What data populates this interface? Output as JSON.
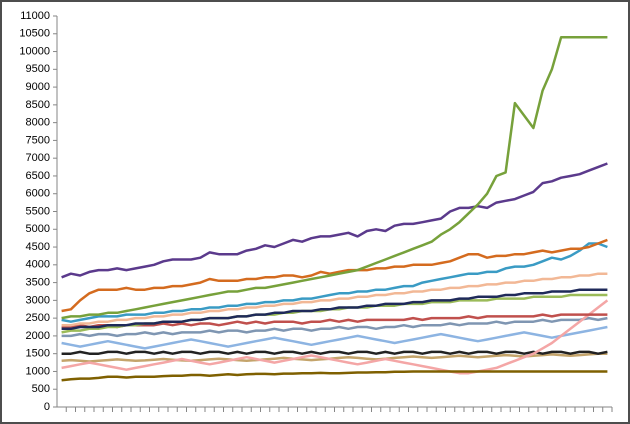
{
  "chart_data": {
    "type": "line",
    "categories": [
      null,
      null,
      null,
      null,
      null,
      null,
      null,
      null,
      null,
      null,
      null,
      null,
      null,
      null,
      null,
      null,
      null,
      null,
      null,
      null,
      null,
      null,
      null,
      null,
      null,
      null,
      null,
      null,
      null,
      null,
      null,
      null,
      null,
      null,
      null,
      null,
      null,
      null,
      null,
      null,
      null,
      null,
      null,
      null,
      null,
      null,
      null,
      null,
      null,
      null,
      null,
      null,
      null,
      null,
      null,
      null,
      null,
      null,
      null,
      null
    ],
    "ylim": [
      0,
      11000
    ],
    "yticks": [
      0,
      500,
      1000,
      1500,
      2000,
      2500,
      3000,
      3500,
      4000,
      4500,
      5000,
      5500,
      6000,
      6500,
      7000,
      7500,
      8000,
      8500,
      9000,
      9500,
      10000,
      10500,
      11000
    ],
    "grid": false,
    "series": [
      {
        "color": "#c4a46b",
        "values": [
          1300,
          1320,
          1300,
          1280,
          1300,
          1320,
          1340,
          1320,
          1300,
          1310,
          1330,
          1350,
          1330,
          1310,
          1300,
          1320,
          1340,
          1360,
          1340,
          1320,
          1300,
          1320,
          1340,
          1360,
          1380,
          1360,
          1340,
          1320,
          1340,
          1360,
          1380,
          1400,
          1380,
          1360,
          1340,
          1360,
          1380,
          1400,
          1420,
          1400,
          1380,
          1400,
          1420,
          1440,
          1420,
          1400,
          1420,
          1440,
          1460,
          1440,
          1420,
          1440,
          1460,
          1480,
          1460,
          1440,
          1460,
          1480,
          1500,
          1500
        ]
      },
      {
        "color": "#8db4e2",
        "values": [
          1800,
          1750,
          1700,
          1750,
          1800,
          1850,
          1800,
          1750,
          1700,
          1650,
          1700,
          1750,
          1800,
          1850,
          1900,
          1850,
          1800,
          1750,
          1700,
          1750,
          1800,
          1850,
          1900,
          1950,
          1900,
          1850,
          1800,
          1750,
          1800,
          1850,
          1900,
          1950,
          2000,
          1950,
          1900,
          1850,
          1800,
          1850,
          1900,
          1950,
          2000,
          2050,
          2000,
          1950,
          1900,
          1850,
          1900,
          1950,
          2000,
          2050,
          2100,
          2050,
          2000,
          1950,
          2000,
          2050,
          2100,
          2150,
          2200,
          2250
        ]
      },
      {
        "color": "#7f96b2",
        "values": [
          2000,
          2000,
          2050,
          2000,
          2050,
          2050,
          2000,
          2050,
          2050,
          2100,
          2050,
          2100,
          2050,
          2100,
          2100,
          2100,
          2150,
          2100,
          2150,
          2150,
          2100,
          2150,
          2150,
          2200,
          2150,
          2200,
          2200,
          2150,
          2200,
          2200,
          2250,
          2200,
          2250,
          2250,
          2200,
          2250,
          2250,
          2300,
          2250,
          2300,
          2300,
          2300,
          2350,
          2300,
          2350,
          2350,
          2350,
          2400,
          2350,
          2400,
          2400,
          2400,
          2450,
          2400,
          2450,
          2450,
          2450,
          2500,
          2450,
          2500
        ]
      },
      {
        "color": "#222222",
        "values": [
          1500,
          1500,
          1550,
          1500,
          1500,
          1550,
          1550,
          1500,
          1550,
          1550,
          1500,
          1550,
          1500,
          1550,
          1550,
          1500,
          1550,
          1550,
          1500,
          1550,
          1500,
          1550,
          1550,
          1500,
          1550,
          1550,
          1500,
          1550,
          1500,
          1550,
          1550,
          1500,
          1550,
          1550,
          1500,
          1550,
          1500,
          1550,
          1550,
          1500,
          1550,
          1550,
          1500,
          1550,
          1500,
          1550,
          1550,
          1500,
          1550,
          1550,
          1500,
          1550,
          1500,
          1550,
          1550,
          1500,
          1550,
          1550,
          1500,
          1550
        ]
      },
      {
        "color": "#f4a6a6",
        "values": [
          1100,
          1150,
          1200,
          1250,
          1200,
          1150,
          1100,
          1050,
          1100,
          1150,
          1200,
          1250,
          1300,
          1350,
          1300,
          1250,
          1200,
          1250,
          1300,
          1350,
          1400,
          1350,
          1300,
          1250,
          1300,
          1350,
          1400,
          1450,
          1400,
          1350,
          1300,
          1250,
          1200,
          1250,
          1300,
          1350,
          1300,
          1250,
          1200,
          1150,
          1100,
          1050,
          1000,
          950,
          950,
          1000,
          1050,
          1100,
          1200,
          1300,
          1400,
          1500,
          1650,
          1800,
          2000,
          2200,
          2400,
          2600,
          2800,
          3000
        ]
      },
      {
        "color": "#7f6000",
        "values": [
          750,
          780,
          800,
          800,
          820,
          850,
          850,
          830,
          850,
          850,
          850,
          870,
          880,
          880,
          900,
          900,
          880,
          900,
          920,
          900,
          920,
          930,
          930,
          920,
          940,
          940,
          950,
          950,
          960,
          950,
          950,
          960,
          970,
          970,
          980,
          980,
          990,
          990,
          1000,
          1000,
          1000,
          1000,
          1000,
          1000,
          1000,
          1000,
          1000,
          1000,
          1000,
          1000,
          1000,
          1000,
          1000,
          1000,
          1000,
          1000,
          1000,
          1000,
          1000,
          1000
        ]
      },
      {
        "color": "#c0504d",
        "values": [
          2250,
          2250,
          2300,
          2250,
          2300,
          2300,
          2250,
          2300,
          2300,
          2300,
          2300,
          2350,
          2300,
          2350,
          2300,
          2350,
          2350,
          2300,
          2350,
          2400,
          2350,
          2400,
          2350,
          2400,
          2400,
          2400,
          2350,
          2400,
          2400,
          2450,
          2400,
          2450,
          2400,
          2450,
          2450,
          2450,
          2450,
          2450,
          2500,
          2450,
          2500,
          2500,
          2500,
          2500,
          2550,
          2500,
          2550,
          2550,
          2550,
          2550,
          2550,
          2550,
          2600,
          2550,
          2600,
          2600,
          2600,
          2600,
          2600,
          2600
        ]
      },
      {
        "color": "#9bbb59",
        "values": [
          2100,
          2150,
          2150,
          2200,
          2200,
          2250,
          2250,
          2300,
          2300,
          2350,
          2350,
          2400,
          2400,
          2400,
          2450,
          2450,
          2500,
          2500,
          2500,
          2550,
          2550,
          2600,
          2600,
          2600,
          2650,
          2650,
          2700,
          2700,
          2700,
          2750,
          2750,
          2800,
          2800,
          2800,
          2850,
          2850,
          2850,
          2900,
          2900,
          2900,
          2950,
          2950,
          2950,
          3000,
          3000,
          3000,
          3000,
          3050,
          3050,
          3050,
          3050,
          3100,
          3100,
          3100,
          3100,
          3150,
          3150,
          3150,
          3150,
          3150
        ]
      },
      {
        "color": "#f2b896",
        "values": [
          2300,
          2300,
          2350,
          2350,
          2400,
          2400,
          2450,
          2450,
          2500,
          2500,
          2550,
          2550,
          2600,
          2600,
          2650,
          2650,
          2700,
          2700,
          2750,
          2750,
          2800,
          2800,
          2850,
          2850,
          2900,
          2900,
          2950,
          2950,
          3000,
          3000,
          3050,
          3050,
          3100,
          3100,
          3150,
          3150,
          3200,
          3200,
          3250,
          3250,
          3300,
          3300,
          3350,
          3350,
          3400,
          3400,
          3450,
          3450,
          3500,
          3500,
          3550,
          3550,
          3600,
          3600,
          3650,
          3650,
          3700,
          3700,
          3750,
          3750
        ]
      },
      {
        "color": "#1f2a5a",
        "values": [
          2200,
          2200,
          2250,
          2250,
          2250,
          2300,
          2300,
          2300,
          2350,
          2350,
          2350,
          2400,
          2400,
          2400,
          2450,
          2450,
          2500,
          2500,
          2500,
          2550,
          2550,
          2600,
          2600,
          2650,
          2650,
          2700,
          2700,
          2700,
          2750,
          2750,
          2800,
          2800,
          2800,
          2850,
          2850,
          2900,
          2900,
          2900,
          2950,
          2950,
          3000,
          3000,
          3000,
          3050,
          3050,
          3100,
          3100,
          3100,
          3150,
          3150,
          3200,
          3200,
          3200,
          3250,
          3250,
          3250,
          3300,
          3300,
          3300,
          3300
        ]
      },
      {
        "color": "#3a9bc4",
        "values": [
          2450,
          2400,
          2450,
          2500,
          2550,
          2550,
          2550,
          2600,
          2600,
          2600,
          2650,
          2650,
          2700,
          2700,
          2750,
          2750,
          2800,
          2800,
          2850,
          2850,
          2900,
          2900,
          2950,
          2950,
          3000,
          3000,
          3050,
          3050,
          3100,
          3150,
          3200,
          3200,
          3250,
          3250,
          3300,
          3300,
          3350,
          3400,
          3400,
          3500,
          3550,
          3600,
          3650,
          3700,
          3750,
          3750,
          3800,
          3800,
          3900,
          3950,
          3950,
          4000,
          4100,
          4200,
          4150,
          4250,
          4400,
          4600,
          4600,
          4500
        ]
      },
      {
        "color": "#d46b1f",
        "values": [
          2700,
          2750,
          3000,
          3200,
          3300,
          3300,
          3300,
          3350,
          3300,
          3300,
          3350,
          3350,
          3400,
          3400,
          3450,
          3500,
          3600,
          3550,
          3550,
          3550,
          3600,
          3600,
          3650,
          3650,
          3700,
          3700,
          3650,
          3700,
          3800,
          3750,
          3800,
          3850,
          3850,
          3850,
          3900,
          3900,
          3950,
          3950,
          4000,
          4000,
          4000,
          4050,
          4100,
          4200,
          4300,
          4300,
          4200,
          4250,
          4250,
          4300,
          4300,
          4350,
          4400,
          4350,
          4400,
          4450,
          4450,
          4500,
          4600,
          4700
        ]
      },
      {
        "color": "#5b3a8c",
        "values": [
          3650,
          3750,
          3700,
          3800,
          3850,
          3850,
          3900,
          3850,
          3900,
          3950,
          4000,
          4100,
          4150,
          4150,
          4150,
          4200,
          4350,
          4300,
          4300,
          4300,
          4400,
          4450,
          4550,
          4500,
          4600,
          4700,
          4650,
          4750,
          4800,
          4800,
          4850,
          4900,
          4800,
          4950,
          5000,
          4950,
          5100,
          5150,
          5150,
          5200,
          5250,
          5300,
          5500,
          5600,
          5600,
          5650,
          5600,
          5750,
          5800,
          5850,
          5950,
          6050,
          6300,
          6350,
          6450,
          6500,
          6550,
          6650,
          6750,
          6850
        ]
      },
      {
        "color": "#77a13b",
        "values": [
          2500,
          2550,
          2550,
          2600,
          2600,
          2650,
          2650,
          2700,
          2750,
          2800,
          2850,
          2900,
          2950,
          3000,
          3050,
          3100,
          3150,
          3200,
          3250,
          3250,
          3300,
          3350,
          3350,
          3400,
          3450,
          3500,
          3550,
          3600,
          3650,
          3700,
          3750,
          3800,
          3850,
          3950,
          4050,
          4150,
          4250,
          4350,
          4450,
          4550,
          4650,
          4850,
          5000,
          5200,
          5450,
          5700,
          6000,
          6500,
          6600,
          8550,
          8200,
          7850,
          8900,
          9500,
          10400,
          10400,
          10400,
          10400,
          10400,
          10400
        ]
      }
    ]
  }
}
